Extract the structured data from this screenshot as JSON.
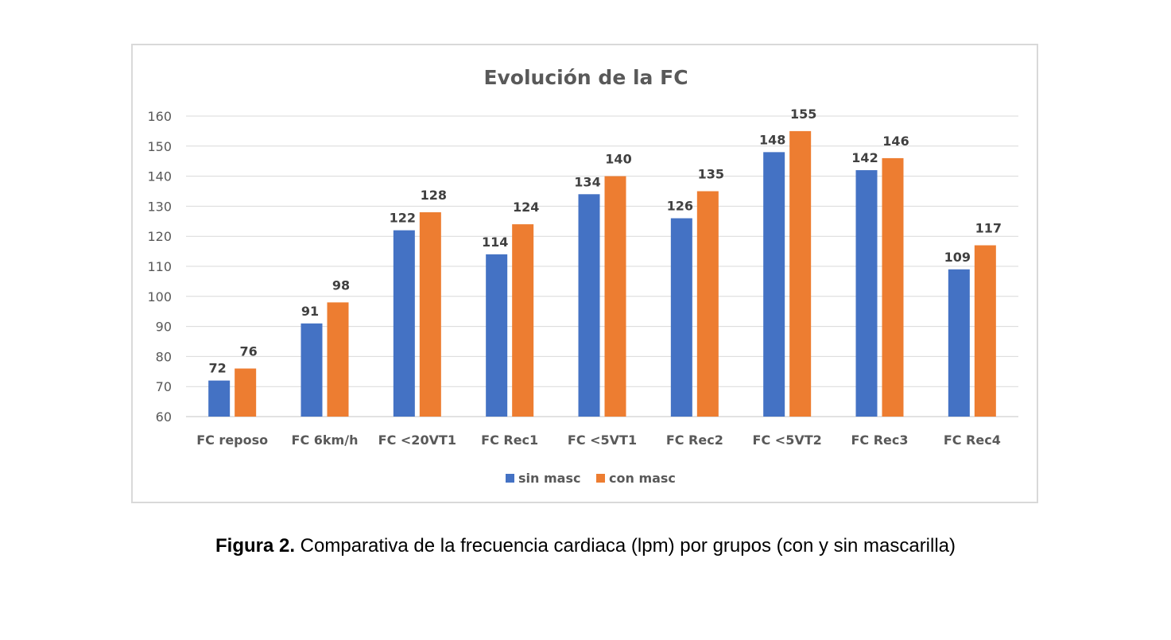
{
  "chart_data": {
    "type": "bar",
    "title": "Evolución de la FC",
    "categories": [
      "FC reposo",
      "FC 6km/h",
      "FC <20VT1",
      "FC Rec1",
      "FC <5VT1",
      "FC Rec2",
      "FC <5VT2",
      "FC Rec3",
      "FC Rec4"
    ],
    "series": [
      {
        "name": "sin masc",
        "color": "#4472c4",
        "values": [
          72,
          91,
          122,
          114,
          134,
          126,
          148,
          142,
          109
        ]
      },
      {
        "name": "con masc",
        "color": "#ed7d31",
        "values": [
          76,
          98,
          128,
          124,
          140,
          135,
          155,
          146,
          117
        ]
      }
    ],
    "ylim": [
      60,
      160
    ],
    "yticks": [
      60,
      70,
      80,
      90,
      100,
      110,
      120,
      130,
      140,
      150,
      160
    ],
    "xlabel": "",
    "ylabel": "",
    "grid": true,
    "legend": "bottom"
  },
  "caption": {
    "label": "Figura 2.",
    "text": " Comparativa de la frecuencia cardiaca (lpm) por grupos (con y sin mascarilla)"
  }
}
